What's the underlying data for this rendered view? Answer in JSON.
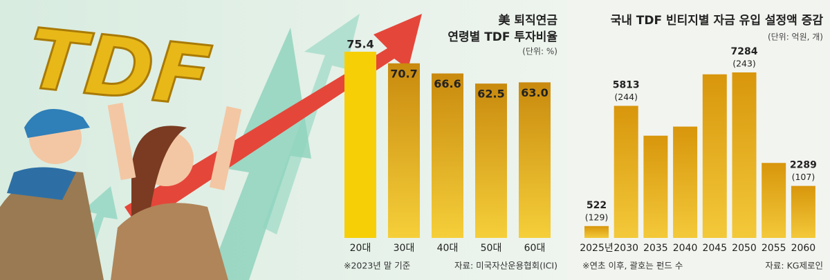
{
  "illustration": {
    "logo": "TDF"
  },
  "chart_data": [
    {
      "type": "bar",
      "title": "美 퇴직연금",
      "subtitle": "연령별 TDF 투자비율",
      "unit": "(단위: %)",
      "categories": [
        "20대",
        "30대",
        "40대",
        "50대",
        "60대"
      ],
      "values": [
        75.4,
        70.7,
        66.6,
        62.5,
        63.0
      ],
      "value_labels": [
        "75.4",
        "70.7",
        "66.6",
        "62.5",
        "63.0"
      ],
      "color": "#e0a418",
      "highlight_color": "#f7cf06",
      "note": "※2023년 말 기준",
      "source": "자료: 미국자산운용협회(ICI)"
    },
    {
      "type": "bar",
      "title": "국내 TDF 빈티지별 자금 유입 설정액 증감",
      "unit": "(단위: 억원, 개)",
      "categories": [
        "2025년",
        "2030",
        "2035",
        "2040",
        "2045",
        "2050",
        "2055",
        "2060"
      ],
      "values": [
        522,
        5813,
        4500,
        4900,
        7200,
        7284,
        3300,
        2289
      ],
      "value_labels": [
        "522",
        "5813",
        null,
        null,
        null,
        "7284",
        null,
        "2289"
      ],
      "counts": [
        129,
        244,
        null,
        null,
        null,
        243,
        null,
        107
      ],
      "count_labels": [
        "(129)",
        "(244)",
        null,
        null,
        null,
        "(243)",
        null,
        "(107)"
      ],
      "color": "#e3ad1c",
      "note": "※연초 이후, 괄호는 펀드 수",
      "source": "자료: KG제로인"
    }
  ]
}
